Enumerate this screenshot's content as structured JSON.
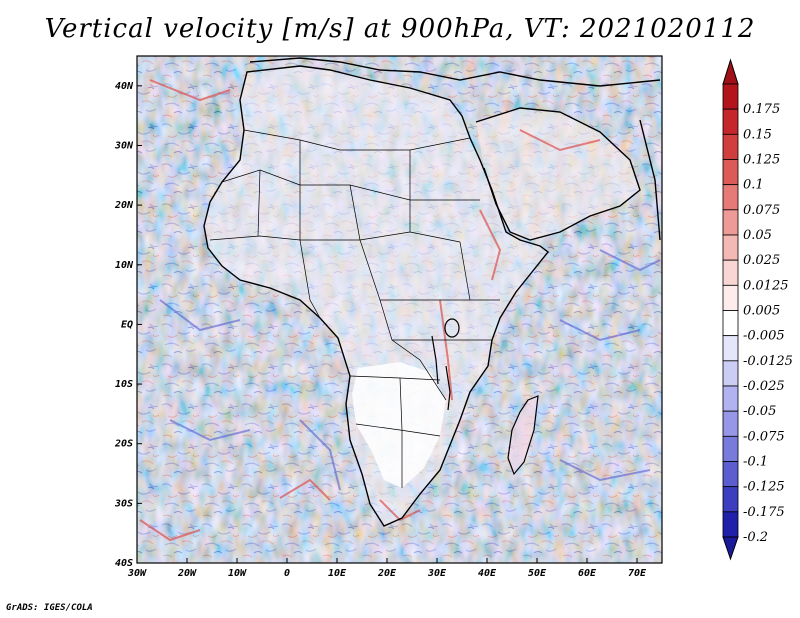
{
  "title": "Vertical velocity [m/s] at 900hPa, VT: 2021020112",
  "credit": "GrADS: IGES/COLA",
  "map": {
    "lon_range": [
      -30,
      75
    ],
    "lat_range": [
      -40,
      45
    ],
    "lat_ticks": [
      {
        "value": 40,
        "label": "40N"
      },
      {
        "value": 30,
        "label": "30N"
      },
      {
        "value": 20,
        "label": "20N"
      },
      {
        "value": 10,
        "label": "10N"
      },
      {
        "value": 0,
        "label": "EQ"
      },
      {
        "value": -10,
        "label": "10S"
      },
      {
        "value": -20,
        "label": "20S"
      },
      {
        "value": -30,
        "label": "30S"
      },
      {
        "value": -40,
        "label": "40S"
      }
    ],
    "lon_ticks": [
      {
        "value": -30,
        "label": "30W"
      },
      {
        "value": -20,
        "label": "20W"
      },
      {
        "value": -10,
        "label": "10W"
      },
      {
        "value": 0,
        "label": "0"
      },
      {
        "value": 10,
        "label": "10E"
      },
      {
        "value": 20,
        "label": "20E"
      },
      {
        "value": 30,
        "label": "30E"
      },
      {
        "value": 40,
        "label": "40E"
      },
      {
        "value": 50,
        "label": "50E"
      },
      {
        "value": 60,
        "label": "60E"
      },
      {
        "value": 70,
        "label": "70E"
      }
    ]
  },
  "colorbar": {
    "levels": [
      {
        "label": "0.175",
        "color": "#b3141c"
      },
      {
        "label": "0.15",
        "color": "#c4262b"
      },
      {
        "label": "0.125",
        "color": "#d13e3e"
      },
      {
        "label": "0.1",
        "color": "#dc5a58"
      },
      {
        "label": "0.075",
        "color": "#e57a76"
      },
      {
        "label": "0.05",
        "color": "#ee9a96"
      },
      {
        "label": "0.025",
        "color": "#f4b9b5"
      },
      {
        "label": "0.0125",
        "color": "#f9d6d3"
      },
      {
        "label": "0.005",
        "color": "#fdeceb"
      },
      {
        "label": "-0.005",
        "color": "#ffffff"
      },
      {
        "label": "-0.0125",
        "color": "#e6e6fa"
      },
      {
        "label": "-0.025",
        "color": "#cccdf5"
      },
      {
        "label": "-0.05",
        "color": "#b1b2ef"
      },
      {
        "label": "-0.075",
        "color": "#9697e6"
      },
      {
        "label": "-0.1",
        "color": "#797bdc"
      },
      {
        "label": "-0.125",
        "color": "#5c5ed0"
      },
      {
        "label": "-0.175",
        "color": "#3c3ebf"
      },
      {
        "label": "-0.2",
        "color": "#2020aa"
      }
    ],
    "top_color": "#a01018",
    "bottom_color": "#1a1a9a"
  }
}
